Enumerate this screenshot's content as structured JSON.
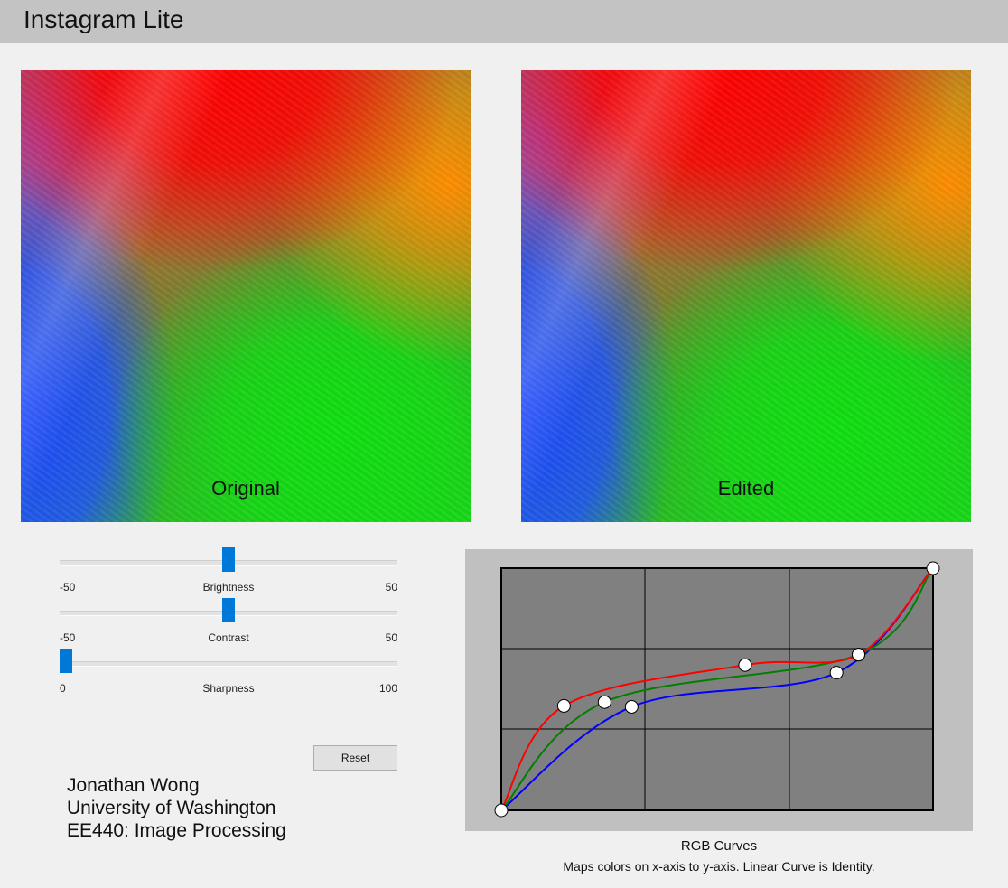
{
  "window": {
    "title": "Instagram Lite"
  },
  "images": {
    "original": {
      "caption": "Original"
    },
    "edited": {
      "caption": "Edited"
    }
  },
  "sliders": [
    {
      "name": "Brightness",
      "min": "-50",
      "max": "50",
      "value": 0
    },
    {
      "name": "Contrast",
      "min": "-50",
      "max": "50",
      "value": 0
    },
    {
      "name": "Sharpness",
      "min": "0",
      "max": "100",
      "value": 0
    }
  ],
  "reset_label": "Reset",
  "author": {
    "name": "Jonathan Wong",
    "school": "University of Washington",
    "course": "EE440: Image Processing"
  },
  "curves": {
    "title": "RGB Curves",
    "description": "Maps colors on x-axis to y-axis. Linear Curve is Identity.",
    "colors": {
      "red": "#ff0000",
      "green": "#008000",
      "blue": "#0000ff",
      "grid_bg": "#808080",
      "panel_bg": "#c0c0c0"
    },
    "endpoints": [
      [
        0,
        0
      ],
      [
        255,
        255
      ]
    ],
    "red_points": [
      [
        37,
        110
      ],
      [
        144,
        153
      ],
      [
        211,
        164
      ]
    ],
    "green_points": [
      [
        61,
        114
      ],
      [
        211,
        164
      ]
    ],
    "blue_points": [
      [
        77,
        109
      ],
      [
        198,
        145
      ]
    ]
  }
}
